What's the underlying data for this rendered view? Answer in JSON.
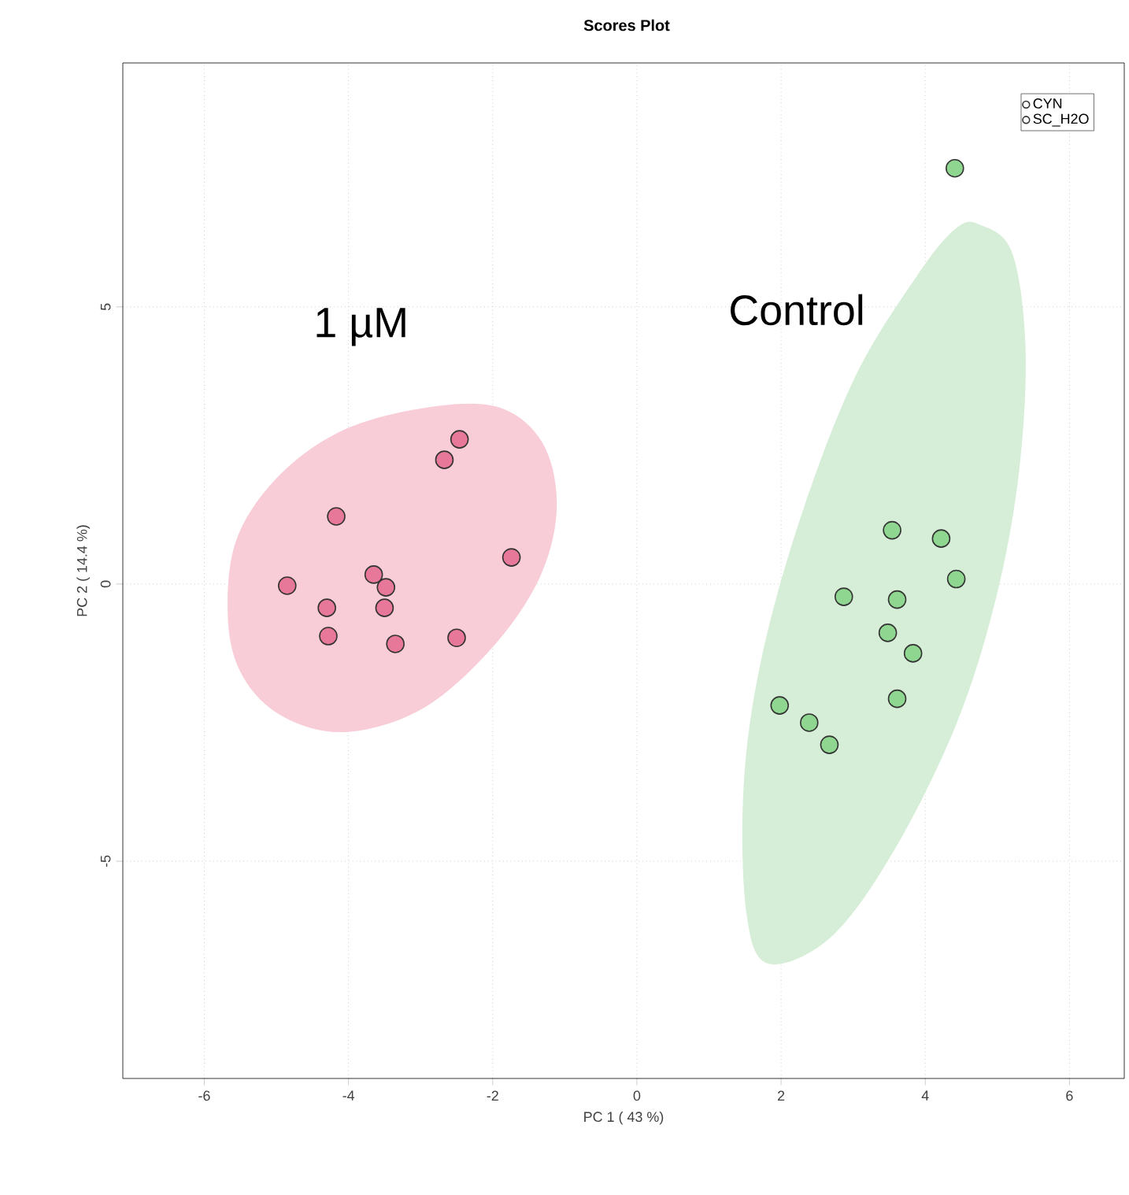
{
  "chart_data": {
    "type": "scatter",
    "title": "Scores Plot",
    "xlabel": "PC 1 ( 43 %)",
    "ylabel": "PC 2 ( 14.4 %)",
    "xlim": [
      -7.13,
      6.76
    ],
    "ylim": [
      -8.92,
      9.4
    ],
    "xticks": [
      -6,
      -4,
      -2,
      0,
      2,
      4,
      6
    ],
    "yticks": [
      -5,
      0,
      5
    ],
    "grid": true,
    "legend": "top right",
    "marker": "circle",
    "series": [
      {
        "type": "area",
        "marker": "none",
        "color": "#f8cdd8",
        "x": [
          -5.67,
          -5.57,
          -5.02,
          -4.15,
          -3.07,
          -1.98,
          -1.33,
          -1.11,
          -1.33,
          -1.98,
          -2.96,
          -4.04,
          -4.91,
          -5.46
        ],
        "values": [
          -0.68,
          0.74,
          1.88,
          2.73,
          3.15,
          3.21,
          2.59,
          1.45,
          0.17,
          -1.11,
          -2.24,
          -2.67,
          -2.39,
          -1.68
        ]
      },
      {
        "type": "area",
        "marker": "none",
        "color": "#d6eed8",
        "x": [
          4.76,
          5.2,
          5.39,
          5.3,
          4.98,
          4.43,
          3.57,
          2.7,
          1.83,
          1.52,
          1.48,
          1.72,
          2.26,
          3.02,
          3.89,
          4.43
        ],
        "values": [
          6.48,
          5.99,
          4.29,
          2.02,
          -0.26,
          -2.53,
          -4.8,
          -6.36,
          -6.85,
          -5.94,
          -3.66,
          -1.39,
          1.16,
          3.72,
          5.57,
          6.42
        ]
      },
      {
        "name": "CYN",
        "color": "#e8789a",
        "x": [
          -4.85,
          -4.17,
          -4.3,
          -4.28,
          -3.65,
          -3.48,
          -3.5,
          -3.35,
          -2.67,
          -2.46,
          -2.5,
          -1.74
        ],
        "values": [
          -0.03,
          1.22,
          -0.43,
          -0.94,
          0.17,
          -0.06,
          -0.43,
          -1.08,
          2.24,
          2.61,
          -0.97,
          0.48
        ]
      },
      {
        "name": "SC_H2O",
        "color": "#8fd690",
        "x": [
          4.41,
          3.54,
          4.22,
          4.43,
          2.87,
          3.61,
          3.48,
          3.83,
          3.61,
          1.98,
          2.39,
          2.67
        ],
        "values": [
          7.5,
          0.97,
          0.82,
          0.09,
          -0.23,
          -0.28,
          -0.88,
          -1.25,
          -2.07,
          -2.19,
          -2.5,
          -2.9
        ]
      }
    ],
    "annotations": [
      "1 µM",
      "Control"
    ]
  }
}
